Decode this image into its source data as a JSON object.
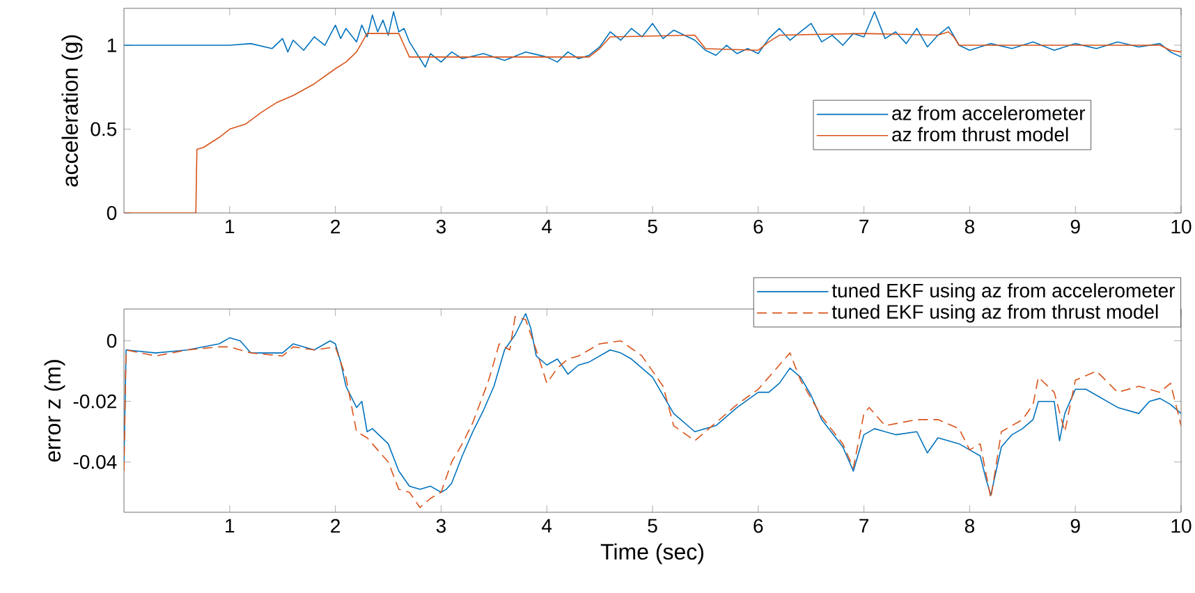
{
  "chart_data": [
    {
      "type": "line",
      "ylabel": "acceleration (g)",
      "xlim": [
        0,
        10
      ],
      "ylim": [
        0,
        1.22
      ],
      "xticks": [
        1,
        2,
        3,
        4,
        5,
        6,
        7,
        8,
        9,
        10
      ],
      "yticks": [
        0,
        0.5,
        1
      ],
      "legend": "right",
      "series": [
        {
          "name": "az from accelerometer",
          "color": "#0072bd",
          "line_style": "solid",
          "x": [
            0,
            0.5,
            1.0,
            1.2,
            1.4,
            1.5,
            1.55,
            1.6,
            1.7,
            1.8,
            1.9,
            2.0,
            2.05,
            2.1,
            2.2,
            2.25,
            2.3,
            2.35,
            2.4,
            2.45,
            2.5,
            2.55,
            2.6,
            2.65,
            2.7,
            2.8,
            2.85,
            2.9,
            3.0,
            3.1,
            3.2,
            3.4,
            3.6,
            3.8,
            4.0,
            4.1,
            4.2,
            4.3,
            4.4,
            4.5,
            4.6,
            4.7,
            4.8,
            4.9,
            5.0,
            5.1,
            5.2,
            5.3,
            5.4,
            5.5,
            5.6,
            5.7,
            5.8,
            5.9,
            6.0,
            6.1,
            6.2,
            6.3,
            6.4,
            6.5,
            6.6,
            6.7,
            6.8,
            6.9,
            7.0,
            7.1,
            7.2,
            7.3,
            7.4,
            7.5,
            7.6,
            7.7,
            7.8,
            7.9,
            8.0,
            8.2,
            8.4,
            8.6,
            8.8,
            9.0,
            9.2,
            9.4,
            9.6,
            9.8,
            9.9,
            10.0
          ],
          "values": [
            1.0,
            1.0,
            1.0,
            1.01,
            0.98,
            1.04,
            0.96,
            1.03,
            0.97,
            1.05,
            1.0,
            1.12,
            1.04,
            1.1,
            1.02,
            1.12,
            1.05,
            1.18,
            1.08,
            1.15,
            1.06,
            1.2,
            1.08,
            1.1,
            1.02,
            0.92,
            0.87,
            0.95,
            0.9,
            0.96,
            0.92,
            0.95,
            0.91,
            0.96,
            0.93,
            0.9,
            0.96,
            0.92,
            0.94,
            0.99,
            1.08,
            1.03,
            1.1,
            1.05,
            1.13,
            1.04,
            1.09,
            1.06,
            1.03,
            0.97,
            0.94,
            1.0,
            0.95,
            0.98,
            0.95,
            1.04,
            1.1,
            1.03,
            1.08,
            1.13,
            1.02,
            1.06,
            1.0,
            1.07,
            1.05,
            1.2,
            1.04,
            1.08,
            1.01,
            1.1,
            0.99,
            1.06,
            1.11,
            1.0,
            0.97,
            1.01,
            0.98,
            1.02,
            0.97,
            1.01,
            0.98,
            1.02,
            0.99,
            1.01,
            0.96,
            0.93
          ]
        },
        {
          "name": "az from thrust model",
          "color": "#d95319",
          "line_style": "solid",
          "x": [
            0,
            0.68,
            0.69,
            0.75,
            0.9,
            1.0,
            1.15,
            1.3,
            1.45,
            1.6,
            1.8,
            2.0,
            2.1,
            2.2,
            2.3,
            2.6,
            2.65,
            2.7,
            4.4,
            4.5,
            4.6,
            5.4,
            5.5,
            6.0,
            6.1,
            6.2,
            7.0,
            7.7,
            7.8,
            7.85,
            7.9,
            9.8,
            9.9,
            10.0
          ],
          "values": [
            0,
            0,
            0.38,
            0.39,
            0.45,
            0.5,
            0.53,
            0.6,
            0.66,
            0.7,
            0.77,
            0.86,
            0.9,
            0.96,
            1.07,
            1.07,
            1.0,
            0.93,
            0.93,
            0.98,
            1.05,
            1.06,
            0.98,
            0.97,
            1.02,
            1.06,
            1.07,
            1.06,
            1.08,
            1.05,
            1.0,
            1.0,
            0.97,
            0.96
          ]
        }
      ]
    },
    {
      "type": "line",
      "xlabel": "Time (sec)",
      "ylabel": "error z (m)",
      "xlim": [
        0,
        10
      ],
      "ylim": [
        -0.0566,
        0.0105
      ],
      "xticks": [
        1,
        2,
        3,
        4,
        5,
        6,
        7,
        8,
        9,
        10
      ],
      "yticks": [
        -0.04,
        -0.02,
        0
      ],
      "legend": "top right",
      "series": [
        {
          "name": "tuned EKF using az from accelerometer",
          "color": "#0072bd",
          "line_style": "solid",
          "x": [
            0,
            0.02,
            0.3,
            0.6,
            0.9,
            1.0,
            1.1,
            1.2,
            1.5,
            1.6,
            1.8,
            1.95,
            2.0,
            2.05,
            2.1,
            2.2,
            2.25,
            2.3,
            2.35,
            2.5,
            2.6,
            2.7,
            2.8,
            2.9,
            3.0,
            3.05,
            3.1,
            3.2,
            3.3,
            3.4,
            3.5,
            3.6,
            3.7,
            3.8,
            3.85,
            3.9,
            4.0,
            4.1,
            4.2,
            4.3,
            4.4,
            4.5,
            4.6,
            4.7,
            4.8,
            5.0,
            5.2,
            5.4,
            5.6,
            5.8,
            6.0,
            6.1,
            6.2,
            6.3,
            6.4,
            6.5,
            6.6,
            6.8,
            6.9,
            7.0,
            7.1,
            7.3,
            7.5,
            7.6,
            7.7,
            7.9,
            8.0,
            8.1,
            8.15,
            8.2,
            8.25,
            8.3,
            8.4,
            8.5,
            8.6,
            8.65,
            8.8,
            8.85,
            8.9,
            9.0,
            9.1,
            9.2,
            9.4,
            9.6,
            9.7,
            9.8,
            9.9,
            10.0
          ],
          "values": [
            -0.04,
            -0.003,
            -0.004,
            -0.003,
            -0.001,
            0.001,
            0.0,
            -0.004,
            -0.004,
            -0.001,
            -0.003,
            0.0,
            -0.001,
            -0.007,
            -0.015,
            -0.022,
            -0.02,
            -0.03,
            -0.029,
            -0.034,
            -0.043,
            -0.048,
            -0.049,
            -0.048,
            -0.05,
            -0.049,
            -0.047,
            -0.038,
            -0.03,
            -0.023,
            -0.015,
            -0.003,
            0.002,
            0.009,
            0.004,
            -0.005,
            -0.008,
            -0.006,
            -0.011,
            -0.008,
            -0.007,
            -0.005,
            -0.003,
            -0.004,
            -0.006,
            -0.012,
            -0.024,
            -0.03,
            -0.028,
            -0.022,
            -0.017,
            -0.017,
            -0.014,
            -0.009,
            -0.012,
            -0.018,
            -0.026,
            -0.035,
            -0.043,
            -0.031,
            -0.029,
            -0.031,
            -0.03,
            -0.037,
            -0.032,
            -0.034,
            -0.036,
            -0.038,
            -0.045,
            -0.051,
            -0.043,
            -0.035,
            -0.031,
            -0.029,
            -0.026,
            -0.02,
            -0.02,
            -0.033,
            -0.024,
            -0.016,
            -0.016,
            -0.018,
            -0.022,
            -0.024,
            -0.02,
            -0.019,
            -0.021,
            -0.024
          ]
        },
        {
          "name": "tuned EKF using az from thrust model",
          "color": "#d95319",
          "line_style": "dashed",
          "x": [
            0,
            0.02,
            0.3,
            0.6,
            0.9,
            1.0,
            1.2,
            1.5,
            1.6,
            1.8,
            2.0,
            2.1,
            2.2,
            2.3,
            2.4,
            2.5,
            2.6,
            2.7,
            2.8,
            2.9,
            3.0,
            3.1,
            3.2,
            3.3,
            3.45,
            3.55,
            3.65,
            3.7,
            3.8,
            3.9,
            4.0,
            4.1,
            4.2,
            4.3,
            4.5,
            4.7,
            4.9,
            5.1,
            5.2,
            5.4,
            5.6,
            5.8,
            6.0,
            6.2,
            6.3,
            6.4,
            6.6,
            6.8,
            6.9,
            7.0,
            7.05,
            7.2,
            7.5,
            7.7,
            7.9,
            8.0,
            8.1,
            8.2,
            8.3,
            8.5,
            8.6,
            8.65,
            8.8,
            8.9,
            9.0,
            9.2,
            9.4,
            9.6,
            9.8,
            9.9,
            10.0
          ],
          "values": [
            -0.043,
            -0.003,
            -0.005,
            -0.003,
            -0.002,
            -0.002,
            -0.004,
            -0.005,
            -0.002,
            -0.003,
            -0.002,
            -0.012,
            -0.03,
            -0.032,
            -0.036,
            -0.04,
            -0.049,
            -0.05,
            -0.055,
            -0.052,
            -0.05,
            -0.04,
            -0.034,
            -0.027,
            -0.013,
            -0.001,
            -0.003,
            0.008,
            0.007,
            -0.003,
            -0.014,
            -0.009,
            -0.006,
            -0.005,
            -0.001,
            0.0,
            -0.005,
            -0.015,
            -0.028,
            -0.033,
            -0.027,
            -0.021,
            -0.016,
            -0.008,
            -0.004,
            -0.013,
            -0.025,
            -0.034,
            -0.042,
            -0.024,
            -0.022,
            -0.028,
            -0.026,
            -0.026,
            -0.029,
            -0.036,
            -0.034,
            -0.052,
            -0.03,
            -0.026,
            -0.021,
            -0.012,
            -0.017,
            -0.03,
            -0.013,
            -0.01,
            -0.017,
            -0.015,
            -0.017,
            -0.014,
            -0.028
          ]
        }
      ]
    }
  ]
}
